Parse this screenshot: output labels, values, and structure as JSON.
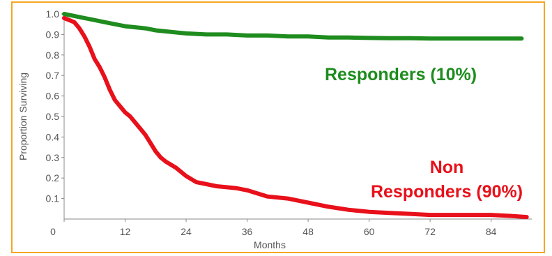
{
  "chart_data": {
    "type": "line",
    "xlabel": "Months",
    "ylabel": "Proportion Surviving",
    "xlim": [
      0,
      92
    ],
    "ylim": [
      0,
      1.0
    ],
    "x_ticks": [
      0,
      12,
      24,
      36,
      48,
      60,
      72,
      84
    ],
    "x_tick_labels": [
      "0",
      "12",
      "24",
      "36",
      "48",
      "60",
      "72",
      "84"
    ],
    "y_ticks": [
      0.1,
      0.2,
      0.3,
      0.4,
      0.5,
      0.6,
      0.7,
      0.8,
      0.9,
      1.0
    ],
    "y_tick_labels": [
      "0.1",
      "0.2",
      "0.3",
      "0.4",
      "0.5",
      "0.6",
      "0.7",
      "0.8",
      "0.9",
      "1.0"
    ],
    "grid": false,
    "legend": "none",
    "series": [
      {
        "name": "Responders (10%)",
        "color": "#1e8c1e",
        "x": [
          0,
          2,
          4,
          6,
          8,
          10,
          12,
          14,
          16,
          18,
          20,
          24,
          28,
          32,
          36,
          40,
          44,
          48,
          52,
          56,
          60,
          64,
          68,
          72,
          76,
          80,
          84,
          88,
          90
        ],
        "y": [
          1.0,
          0.99,
          0.98,
          0.97,
          0.96,
          0.95,
          0.94,
          0.935,
          0.93,
          0.92,
          0.915,
          0.905,
          0.9,
          0.9,
          0.895,
          0.895,
          0.89,
          0.89,
          0.885,
          0.885,
          0.883,
          0.882,
          0.882,
          0.88,
          0.88,
          0.88,
          0.88,
          0.88,
          0.88
        ]
      },
      {
        "name": "Non Responders (90%)",
        "color": "#e8101a",
        "x": [
          0,
          1,
          2,
          3,
          4,
          5,
          6,
          7,
          8,
          9,
          10,
          11,
          12,
          13,
          14,
          15,
          16,
          17,
          18,
          19,
          20,
          22,
          24,
          26,
          28,
          30,
          32,
          34,
          36,
          38,
          40,
          44,
          48,
          52,
          56,
          60,
          64,
          68,
          72,
          76,
          80,
          84,
          88,
          91
        ],
        "y": [
          0.98,
          0.97,
          0.96,
          0.93,
          0.89,
          0.84,
          0.78,
          0.74,
          0.69,
          0.63,
          0.58,
          0.55,
          0.52,
          0.5,
          0.47,
          0.44,
          0.41,
          0.37,
          0.33,
          0.3,
          0.28,
          0.25,
          0.21,
          0.18,
          0.17,
          0.16,
          0.155,
          0.15,
          0.14,
          0.125,
          0.11,
          0.1,
          0.08,
          0.06,
          0.045,
          0.035,
          0.03,
          0.025,
          0.02,
          0.02,
          0.02,
          0.02,
          0.015,
          0.01
        ]
      }
    ],
    "annotations": [
      {
        "text": "Responders (10%)",
        "color": "#1e8c1e"
      },
      {
        "text": "Non",
        "color": "#e8101a"
      },
      {
        "text": "Responders (90%)",
        "color": "#e8101a"
      }
    ]
  }
}
